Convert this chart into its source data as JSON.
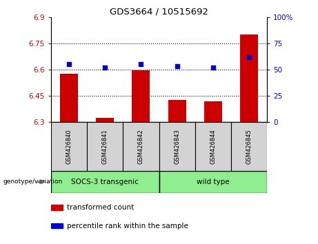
{
  "title": "GDS3664 / 10515692",
  "samples": [
    "GSM426840",
    "GSM426841",
    "GSM426842",
    "GSM426843",
    "GSM426844",
    "GSM426845"
  ],
  "red_values": [
    6.575,
    6.325,
    6.595,
    6.425,
    6.42,
    6.8
  ],
  "blue_values": [
    55,
    52,
    55,
    53,
    52,
    62
  ],
  "ylim_left": [
    6.3,
    6.9
  ],
  "ylim_right": [
    0,
    100
  ],
  "yticks_left": [
    6.3,
    6.45,
    6.6,
    6.75,
    6.9
  ],
  "ytick_labels_left": [
    "6.3",
    "6.45",
    "6.6",
    "6.75",
    "6.9"
  ],
  "yticks_right": [
    0,
    25,
    50,
    75,
    100
  ],
  "ytick_labels_right": [
    "0",
    "25",
    "50",
    "75",
    "100%"
  ],
  "hlines": [
    6.45,
    6.6,
    6.75
  ],
  "bar_color": "#cc0000",
  "dot_color": "#0000cc",
  "bar_width": 0.5,
  "genotype_labels": [
    "SOCS-3 transgenic",
    "wild type"
  ],
  "sample_bg_color": "#d3d3d3",
  "geno_color": "#90ee90",
  "legend_items": [
    {
      "color": "#cc0000",
      "label": "transformed count"
    },
    {
      "color": "#0000cc",
      "label": "percentile rank within the sample"
    }
  ],
  "xlabel_genotype": "genotype/variation"
}
